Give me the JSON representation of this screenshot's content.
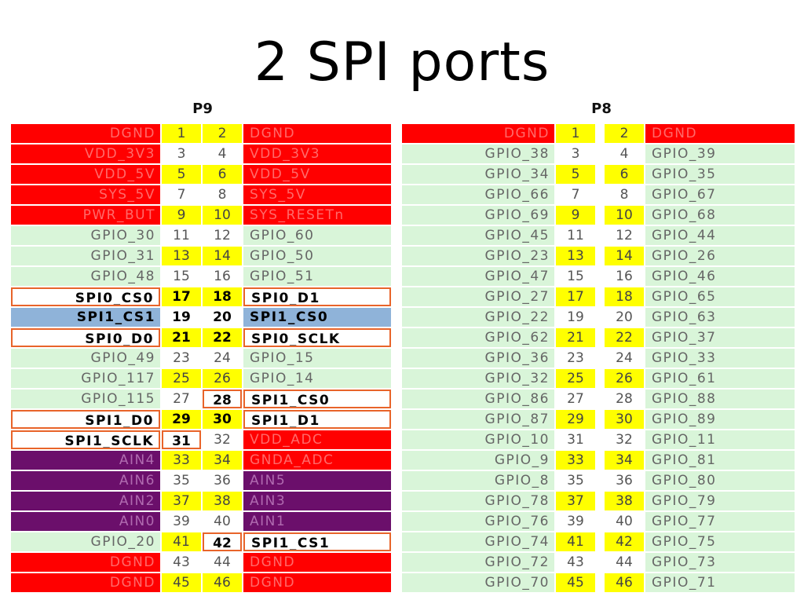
{
  "title": "2 SPI ports",
  "colors": {
    "red": "#ff0000",
    "green": "#d9f5d9",
    "purple": "#6b0f6b",
    "blue": "#8fb3d9",
    "yellow": "#ffff00",
    "highlight_border": "#e8642a"
  },
  "p9": {
    "header": "P9",
    "rows": [
      {
        "l": "DGND",
        "lc": "red",
        "n1": "1",
        "n1c": "yellow",
        "n2": "2",
        "n2c": "yellow",
        "r": "DGND",
        "rc": "red"
      },
      {
        "l": "VDD_3V3",
        "lc": "red",
        "n1": "3",
        "n1c": "plain",
        "n2": "4",
        "n2c": "plain",
        "r": "VDD_3V3",
        "rc": "red"
      },
      {
        "l": "VDD_5V",
        "lc": "red",
        "n1": "5",
        "n1c": "yellow",
        "n2": "6",
        "n2c": "yellow",
        "r": "VDD_5V",
        "rc": "red"
      },
      {
        "l": "SYS_5V",
        "lc": "red",
        "n1": "7",
        "n1c": "plain",
        "n2": "8",
        "n2c": "plain",
        "r": "SYS_5V",
        "rc": "red"
      },
      {
        "l": "PWR_BUT",
        "lc": "red",
        "n1": "9",
        "n1c": "yellow",
        "n2": "10",
        "n2c": "yellow",
        "r": "SYS_RESETn",
        "rc": "red"
      },
      {
        "l": "GPIO_30",
        "lc": "green",
        "n1": "11",
        "n1c": "plain",
        "n2": "12",
        "n2c": "plain",
        "r": "GPIO_60",
        "rc": "green"
      },
      {
        "l": "GPIO_31",
        "lc": "green",
        "n1": "13",
        "n1c": "yellow",
        "n2": "14",
        "n2c": "yellow",
        "r": "GPIO_50",
        "rc": "green"
      },
      {
        "l": "GPIO_48",
        "lc": "green",
        "n1": "15",
        "n1c": "plain",
        "n2": "16",
        "n2c": "plain",
        "r": "GPIO_51",
        "rc": "green"
      },
      {
        "l": "SPI0_CS0",
        "lc": "white",
        "n1": "17",
        "n1c": "yellowbold",
        "n2": "18",
        "n2c": "yellowbold",
        "r": "SPI0_D1",
        "rc": "white"
      },
      {
        "l": "SPI1_CS1",
        "lc": "blue",
        "n1": "19",
        "n1c": "plainbold",
        "n2": "20",
        "n2c": "plainbold",
        "r": "SPI1_CS0",
        "rc": "blue"
      },
      {
        "l": "SPI0_D0",
        "lc": "white",
        "n1": "21",
        "n1c": "yellowbold",
        "n2": "22",
        "n2c": "yellowbold",
        "r": "SPI0_SCLK",
        "rc": "white"
      },
      {
        "l": "GPIO_49",
        "lc": "green",
        "n1": "23",
        "n1c": "plain",
        "n2": "24",
        "n2c": "plain",
        "r": "GPIO_15",
        "rc": "green"
      },
      {
        "l": "GPIO_117",
        "lc": "green",
        "n1": "25",
        "n1c": "yellow",
        "n2": "26",
        "n2c": "yellow",
        "r": "GPIO_14",
        "rc": "green"
      },
      {
        "l": "GPIO_115",
        "lc": "green",
        "n1": "27",
        "n1c": "plain",
        "n2": "28",
        "n2c": "box",
        "r": "SPI1_CS0",
        "rc": "white"
      },
      {
        "l": "SPI1_D0",
        "lc": "white",
        "n1": "29",
        "n1c": "yellowbold",
        "n2": "30",
        "n2c": "yellowbold",
        "r": "SPI1_D1",
        "rc": "white"
      },
      {
        "l": "SPI1_SCLK",
        "lc": "white",
        "n1": "31",
        "n1c": "box",
        "n2": "32",
        "n2c": "plain",
        "r": "VDD_ADC",
        "rc": "red"
      },
      {
        "l": "AIN4",
        "lc": "purple",
        "n1": "33",
        "n1c": "yellow",
        "n2": "34",
        "n2c": "yellow",
        "r": "GNDA_ADC",
        "rc": "red"
      },
      {
        "l": "AIN6",
        "lc": "purple",
        "n1": "35",
        "n1c": "plain",
        "n2": "36",
        "n2c": "plain",
        "r": "AIN5",
        "rc": "purple"
      },
      {
        "l": "AIN2",
        "lc": "purple",
        "n1": "37",
        "n1c": "yellow",
        "n2": "38",
        "n2c": "yellow",
        "r": "AIN3",
        "rc": "purple"
      },
      {
        "l": "AIN0",
        "lc": "purple",
        "n1": "39",
        "n1c": "plain",
        "n2": "40",
        "n2c": "plain",
        "r": "AIN1",
        "rc": "purple"
      },
      {
        "l": "GPIO_20",
        "lc": "green",
        "n1": "41",
        "n1c": "yellow",
        "n2": "42",
        "n2c": "yellowbox",
        "r": "SPI1_CS1",
        "rc": "white"
      },
      {
        "l": "DGND",
        "lc": "red",
        "n1": "43",
        "n1c": "plain",
        "n2": "44",
        "n2c": "plain",
        "r": "DGND",
        "rc": "red"
      },
      {
        "l": "DGND",
        "lc": "red",
        "n1": "45",
        "n1c": "yellow",
        "n2": "46",
        "n2c": "yellow",
        "r": "DGND",
        "rc": "red"
      }
    ]
  },
  "p8": {
    "header": "P8",
    "rows": [
      {
        "l": "DGND",
        "lc": "red",
        "n1": "1",
        "n1c": "yellow",
        "n2": "2",
        "n2c": "yellow",
        "r": "DGND",
        "rc": "red"
      },
      {
        "l": "GPIO_38",
        "lc": "green",
        "n1": "3",
        "n1c": "plain",
        "n2": "4",
        "n2c": "plain",
        "r": "GPIO_39",
        "rc": "green"
      },
      {
        "l": "GPIO_34",
        "lc": "green",
        "n1": "5",
        "n1c": "yellow",
        "n2": "6",
        "n2c": "yellow",
        "r": "GPIO_35",
        "rc": "green"
      },
      {
        "l": "GPIO_66",
        "lc": "green",
        "n1": "7",
        "n1c": "plain",
        "n2": "8",
        "n2c": "plain",
        "r": "GPIO_67",
        "rc": "green"
      },
      {
        "l": "GPIO_69",
        "lc": "green",
        "n1": "9",
        "n1c": "yellow",
        "n2": "10",
        "n2c": "yellow",
        "r": "GPIO_68",
        "rc": "green"
      },
      {
        "l": "GPIO_45",
        "lc": "green",
        "n1": "11",
        "n1c": "plain",
        "n2": "12",
        "n2c": "plain",
        "r": "GPIO_44",
        "rc": "green"
      },
      {
        "l": "GPIO_23",
        "lc": "green",
        "n1": "13",
        "n1c": "yellow",
        "n2": "14",
        "n2c": "yellow",
        "r": "GPIO_26",
        "rc": "green"
      },
      {
        "l": "GPIO_47",
        "lc": "green",
        "n1": "15",
        "n1c": "plain",
        "n2": "16",
        "n2c": "plain",
        "r": "GPIO_46",
        "rc": "green"
      },
      {
        "l": "GPIO_27",
        "lc": "green",
        "n1": "17",
        "n1c": "yellow",
        "n2": "18",
        "n2c": "yellow",
        "r": "GPIO_65",
        "rc": "green"
      },
      {
        "l": "GPIO_22",
        "lc": "green",
        "n1": "19",
        "n1c": "plain",
        "n2": "20",
        "n2c": "plain",
        "r": "GPIO_63",
        "rc": "green"
      },
      {
        "l": "GPIO_62",
        "lc": "green",
        "n1": "21",
        "n1c": "yellow",
        "n2": "22",
        "n2c": "yellow",
        "r": "GPIO_37",
        "rc": "green"
      },
      {
        "l": "GPIO_36",
        "lc": "green",
        "n1": "23",
        "n1c": "plain",
        "n2": "24",
        "n2c": "plain",
        "r": "GPIO_33",
        "rc": "green"
      },
      {
        "l": "GPIO_32",
        "lc": "green",
        "n1": "25",
        "n1c": "yellow",
        "n2": "26",
        "n2c": "yellow",
        "r": "GPIO_61",
        "rc": "green"
      },
      {
        "l": "GPIO_86",
        "lc": "green",
        "n1": "27",
        "n1c": "plain",
        "n2": "28",
        "n2c": "plain",
        "r": "GPIO_88",
        "rc": "green"
      },
      {
        "l": "GPIO_87",
        "lc": "green",
        "n1": "29",
        "n1c": "yellow",
        "n2": "30",
        "n2c": "yellow",
        "r": "GPIO_89",
        "rc": "green"
      },
      {
        "l": "GPIO_10",
        "lc": "green",
        "n1": "31",
        "n1c": "plain",
        "n2": "32",
        "n2c": "plain",
        "r": "GPIO_11",
        "rc": "green"
      },
      {
        "l": "GPIO_9",
        "lc": "green",
        "n1": "33",
        "n1c": "yellow",
        "n2": "34",
        "n2c": "yellow",
        "r": "GPIO_81",
        "rc": "green"
      },
      {
        "l": "GPIO_8",
        "lc": "green",
        "n1": "35",
        "n1c": "plain",
        "n2": "36",
        "n2c": "plain",
        "r": "GPIO_80",
        "rc": "green"
      },
      {
        "l": "GPIO_78",
        "lc": "green",
        "n1": "37",
        "n1c": "yellow",
        "n2": "38",
        "n2c": "yellow",
        "r": "GPIO_79",
        "rc": "green"
      },
      {
        "l": "GPIO_76",
        "lc": "green",
        "n1": "39",
        "n1c": "plain",
        "n2": "40",
        "n2c": "plain",
        "r": "GPIO_77",
        "rc": "green"
      },
      {
        "l": "GPIO_74",
        "lc": "green",
        "n1": "41",
        "n1c": "yellow",
        "n2": "42",
        "n2c": "yellow",
        "r": "GPIO_75",
        "rc": "green"
      },
      {
        "l": "GPIO_72",
        "lc": "green",
        "n1": "43",
        "n1c": "plain",
        "n2": "44",
        "n2c": "plain",
        "r": "GPIO_73",
        "rc": "green"
      },
      {
        "l": "GPIO_70",
        "lc": "green",
        "n1": "45",
        "n1c": "yellow",
        "n2": "46",
        "n2c": "yellow",
        "r": "GPIO_71",
        "rc": "green"
      }
    ]
  }
}
